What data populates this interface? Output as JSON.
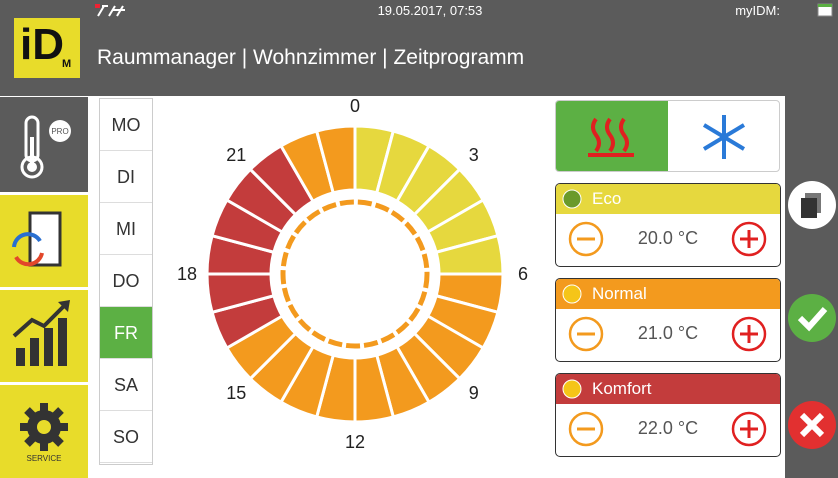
{
  "header": {
    "datetime": "19.05.2017, 07:53",
    "user": "myIDM:",
    "title": "Raummanager | Wohnzimmer | Zeitprogramm",
    "logo": "iD",
    "logo_sub": "M"
  },
  "sidebar": {
    "pro": "PRO",
    "service": "SERVICE"
  },
  "days": {
    "items": [
      "MO",
      "DI",
      "MI",
      "DO",
      "FR",
      "SA",
      "SO"
    ],
    "selected": "FR"
  },
  "wheel": {
    "hour_labels": [
      0,
      3,
      6,
      9,
      12,
      15,
      18,
      21
    ],
    "schedule": [
      "Eco",
      "Eco",
      "Eco",
      "Eco",
      "Eco",
      "Eco",
      "Normal",
      "Normal",
      "Normal",
      "Normal",
      "Normal",
      "Normal",
      "Normal",
      "Normal",
      "Normal",
      "Normal",
      "Komfort",
      "Komfort",
      "Komfort",
      "Komfort",
      "Komfort",
      "Komfort",
      "Normal",
      "Normal"
    ]
  },
  "modes": [
    {
      "name": "Eco",
      "temperature": "20.0 °C",
      "color": "#e6d83e"
    },
    {
      "name": "Normal",
      "temperature": "21.0 °C",
      "color": "#f39a1e"
    },
    {
      "name": "Komfort",
      "temperature": "22.0 °C",
      "color": "#c33c3c"
    }
  ]
}
